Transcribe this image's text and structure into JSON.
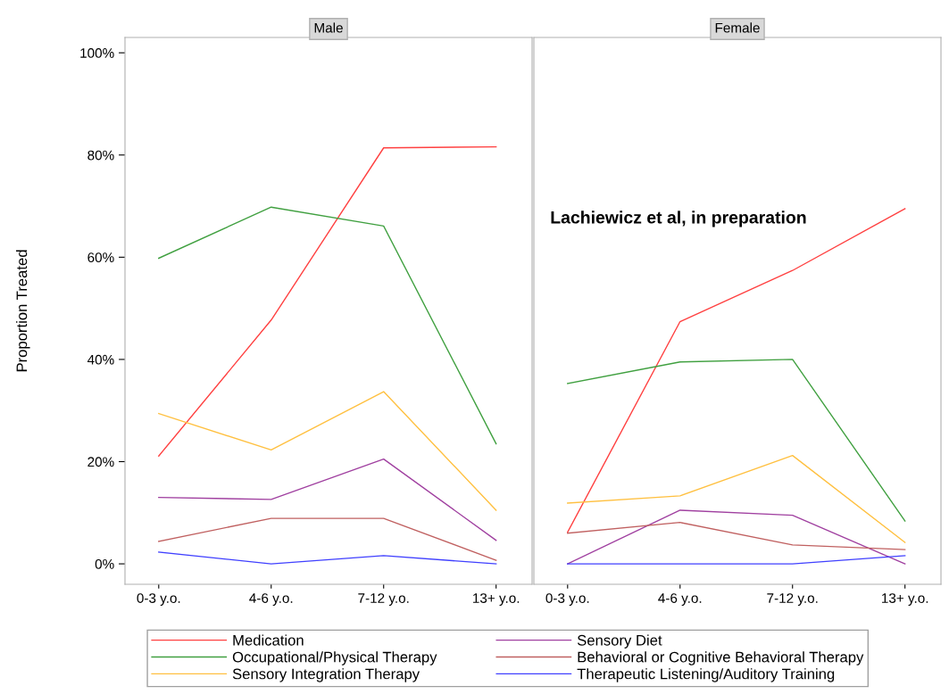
{
  "chart_data": [
    {
      "type": "line",
      "title": "Male",
      "ylabel": "Proportion Treated",
      "categories": [
        "0-3 y.o.",
        "4-6 y.o.",
        "7-12 y.o.",
        "13+ y.o."
      ],
      "ylim": [
        -4,
        103
      ],
      "yticks": [
        {
          "value": 0,
          "label": "0%"
        },
        {
          "value": 20,
          "label": "20%"
        },
        {
          "value": 40,
          "label": "40%"
        },
        {
          "value": 60,
          "label": "60%"
        },
        {
          "value": 80,
          "label": "80%"
        },
        {
          "value": 100,
          "label": "100%"
        }
      ],
      "grid": false,
      "legend": "bottom",
      "marker": "none",
      "line_style": "solid",
      "series": [
        {
          "name": "Medication",
          "color": "#ff4040",
          "values": [
            21.1,
            47.7,
            81.4,
            81.6
          ]
        },
        {
          "name": "Occupational/Physical Therapy",
          "color": "#40a040",
          "values": [
            59.8,
            69.8,
            66.1,
            23.5
          ]
        },
        {
          "name": "Sensory Integration Therapy",
          "color": "#ffc040",
          "values": [
            29.4,
            22.3,
            33.7,
            10.5
          ]
        },
        {
          "name": "Sensory Diet",
          "color": "#a040a0",
          "values": [
            13.0,
            12.6,
            20.5,
            4.6
          ]
        },
        {
          "name": "Behavioral or Cognitive Behavioral Therapy",
          "color": "#c06060",
          "values": [
            4.4,
            8.9,
            8.9,
            0.7
          ]
        },
        {
          "name": "Therapeutic Listening/Auditory Training",
          "color": "#4040ff",
          "values": [
            2.3,
            0,
            1.6,
            0
          ]
        }
      ]
    },
    {
      "type": "line",
      "title": "Female",
      "categories": [
        "0-3 y.o.",
        "4-6 y.o.",
        "7-12 y.o.",
        "13+ y.o."
      ],
      "ylim": [
        -4,
        103
      ],
      "tick_labels": "x",
      "grid": false,
      "legend": false,
      "marker": "none",
      "line_style": "solid",
      "annotations": [
        "Lachiewicz et al, in preparation"
      ],
      "series": [
        {
          "color": "#ff4040",
          "values": [
            6.2,
            47.4,
            57.4,
            69.5
          ]
        },
        {
          "color": "#40a040",
          "values": [
            35.3,
            39.5,
            40.0,
            8.4
          ]
        },
        {
          "color": "#ffc040",
          "values": [
            11.9,
            13.3,
            21.2,
            4.2
          ]
        },
        {
          "color": "#a040a0",
          "values": [
            0,
            10.5,
            9.5,
            0
          ]
        },
        {
          "color": "#c06060",
          "values": [
            6.0,
            8.1,
            3.7,
            2.8
          ]
        },
        {
          "color": "#4040ff",
          "values": [
            0,
            0,
            0,
            1.6
          ]
        }
      ]
    }
  ]
}
